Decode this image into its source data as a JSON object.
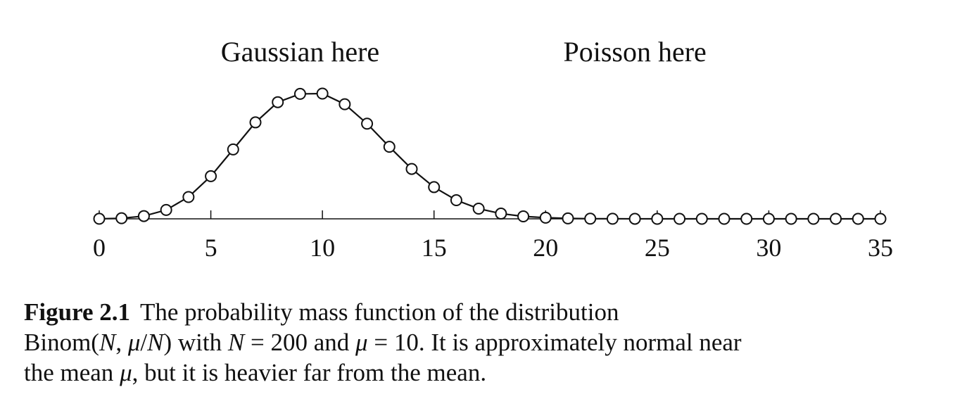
{
  "chart_data": {
    "type": "line",
    "markers": "open-circle",
    "x": [
      0,
      1,
      2,
      3,
      4,
      5,
      6,
      7,
      8,
      9,
      10,
      11,
      12,
      13,
      14,
      15,
      16,
      17,
      18,
      19,
      20,
      21,
      22,
      23,
      24,
      25,
      26,
      27,
      28,
      29,
      30,
      31,
      32,
      33,
      34,
      35
    ],
    "values": [
      4e-05,
      0.0004,
      0.0019,
      0.0061,
      0.015,
      0.0293,
      0.0477,
      0.0663,
      0.0802,
      0.0859,
      0.0861,
      0.0788,
      0.0654,
      0.0495,
      0.0343,
      0.0218,
      0.0128,
      0.007,
      0.0036,
      0.0017,
      0.0008,
      0.0003,
      0.0001,
      5e-05,
      2e-05,
      1e-05,
      0,
      0,
      0,
      0,
      0,
      0,
      0,
      0,
      0,
      0
    ],
    "xlim": [
      0,
      35
    ],
    "ylim": [
      0,
      0.0861
    ],
    "xticks": [
      0,
      5,
      10,
      15,
      20,
      25,
      30,
      35
    ],
    "yaxis_visible": false,
    "grid": false,
    "annotations": [
      {
        "text": "Gaussian here",
        "x": 9
      },
      {
        "text": "Poisson here",
        "x": 24
      }
    ]
  },
  "caption": {
    "label": "Figure 2.1",
    "line1_text": "The probability mass function of the distribution",
    "line2_prefix": "Binom(",
    "var_N": "N",
    "sep_comma": ", ",
    "var_mu": "μ",
    "slash": "/",
    "line2_close": ") with ",
    "eq_N": " = 200 and ",
    "eq_mu": " = 10. It is approximately normal near",
    "line3_prefix": "the mean ",
    "line3_suffix": ", but it is heavier far from the mean."
  }
}
